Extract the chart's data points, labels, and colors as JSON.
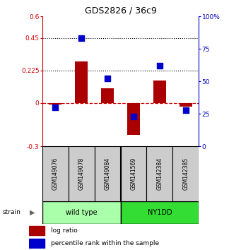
{
  "title": "GDS2826 / 36c9",
  "samples": [
    "GSM149076",
    "GSM149078",
    "GSM149084",
    "GSM141569",
    "GSM142384",
    "GSM142385"
  ],
  "log_ratio": [
    -0.01,
    0.285,
    0.1,
    -0.22,
    0.155,
    -0.025
  ],
  "percentile_rank": [
    30,
    83,
    52,
    23,
    62,
    28
  ],
  "groups": [
    {
      "label": "wild type",
      "color": "#aaffaa"
    },
    {
      "label": "NY1DD",
      "color": "#33dd33"
    }
  ],
  "ylim_left": [
    -0.3,
    0.6
  ],
  "ylim_right": [
    0,
    100
  ],
  "yticks_left": [
    -0.3,
    0.0,
    0.225,
    0.45,
    0.6
  ],
  "yticks_right": [
    0,
    25,
    50,
    75,
    100
  ],
  "ytick_labels_left": [
    "-0.3",
    "0",
    "0.225",
    "0.45",
    "0.6"
  ],
  "ytick_labels_right": [
    "0",
    "25",
    "50",
    "75",
    "100%"
  ],
  "hlines": [
    0.225,
    0.45
  ],
  "bar_color": "#aa0000",
  "dot_color": "#0000cc",
  "bar_width": 0.5,
  "dot_size": 30,
  "left_axis_color": "#cc0000",
  "right_axis_color": "#0000bb"
}
